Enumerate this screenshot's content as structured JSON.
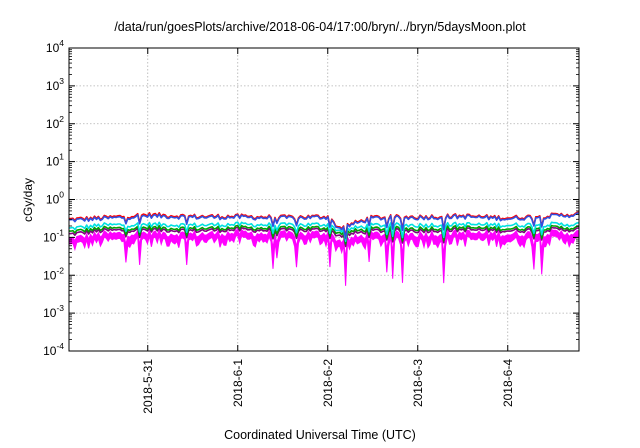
{
  "chart_data": {
    "type": "line",
    "title": "/data/run/goesPlots/archive/2018-06-04/17:00/bryn/../bryn/5daysMoon.plot",
    "xlabel": "Coordinated Universal Time (UTC)",
    "ylabel": "cGy/day",
    "yscale": "log",
    "ylim": [
      0.0001,
      10000
    ],
    "xlim": [
      "2018-05-30 03:00",
      "2018-06-04 19:00"
    ],
    "grid": true,
    "legend": "none",
    "x_ticks": [
      "2018-5-31",
      "2018-6-1",
      "2018-6-2",
      "2018-6-3",
      "2018-6-4"
    ],
    "y_ticks": [
      {
        "base": "10",
        "exp": "-4"
      },
      {
        "base": "10",
        "exp": "-3"
      },
      {
        "base": "10",
        "exp": "-2"
      },
      {
        "base": "10",
        "exp": "-1"
      },
      {
        "base": "10",
        "exp": "0"
      },
      {
        "base": "10",
        "exp": "1"
      },
      {
        "base": "10",
        "exp": "2"
      },
      {
        "base": "10",
        "exp": "3"
      },
      {
        "base": "10",
        "exp": "4"
      }
    ],
    "series": [
      {
        "color": "#ff00ff",
        "style": "band",
        "x": [
          "2018-05-30 03:00",
          "2018-05-30 12:00",
          "2018-05-31 00:00",
          "2018-05-31 12:00",
          "2018-06-01 00:00",
          "2018-06-01 12:00",
          "2018-06-02 00:00",
          "2018-06-02 03:00",
          "2018-06-02 12:00",
          "2018-06-03 00:00",
          "2018-06-03 12:00",
          "2018-06-04 00:00",
          "2018-06-04 12:00",
          "2018-06-04 19:00"
        ],
        "values": [
          0.09,
          0.12,
          0.13,
          0.12,
          0.13,
          0.12,
          0.13,
          0.08,
          0.12,
          0.12,
          0.13,
          0.12,
          0.13,
          0.13
        ]
      },
      {
        "color": "#800080",
        "style": "line",
        "x": [
          "2018-05-30 03:00",
          "2018-05-30 12:00",
          "2018-05-31 00:00",
          "2018-05-31 12:00",
          "2018-06-01 00:00",
          "2018-06-01 12:00",
          "2018-06-02 00:00",
          "2018-06-02 03:00",
          "2018-06-02 12:00",
          "2018-06-03 00:00",
          "2018-06-03 12:00",
          "2018-06-04 00:00",
          "2018-06-04 12:00",
          "2018-06-04 19:00"
        ],
        "values": [
          0.12,
          0.15,
          0.16,
          0.15,
          0.16,
          0.15,
          0.16,
          0.11,
          0.15,
          0.15,
          0.16,
          0.15,
          0.16,
          0.16
        ]
      },
      {
        "color": "#00a000",
        "style": "line",
        "x": [
          "2018-05-30 03:00",
          "2018-05-30 12:00",
          "2018-05-31 00:00",
          "2018-05-31 12:00",
          "2018-06-01 00:00",
          "2018-06-01 12:00",
          "2018-06-02 00:00",
          "2018-06-02 03:00",
          "2018-06-02 12:00",
          "2018-06-03 00:00",
          "2018-06-03 12:00",
          "2018-06-04 00:00",
          "2018-06-04 12:00",
          "2018-06-04 19:00"
        ],
        "values": [
          0.14,
          0.17,
          0.18,
          0.17,
          0.18,
          0.17,
          0.18,
          0.13,
          0.17,
          0.17,
          0.18,
          0.17,
          0.18,
          0.18
        ]
      },
      {
        "color": "#00e0e0",
        "style": "line",
        "x": [
          "2018-05-30 03:00",
          "2018-05-30 12:00",
          "2018-05-31 00:00",
          "2018-05-31 12:00",
          "2018-06-01 00:00",
          "2018-06-01 12:00",
          "2018-06-02 00:00",
          "2018-06-02 03:00",
          "2018-06-02 12:00",
          "2018-06-03 00:00",
          "2018-06-03 12:00",
          "2018-06-04 00:00",
          "2018-06-04 12:00",
          "2018-06-04 19:00"
        ],
        "values": [
          0.17,
          0.21,
          0.22,
          0.21,
          0.22,
          0.21,
          0.22,
          0.15,
          0.21,
          0.21,
          0.22,
          0.21,
          0.22,
          0.22
        ]
      },
      {
        "color": "#ff0000",
        "style": "line",
        "x": [
          "2018-05-30 03:00",
          "2018-05-30 12:00",
          "2018-05-31 00:00",
          "2018-05-31 12:00",
          "2018-06-01 00:00",
          "2018-06-01 12:00",
          "2018-06-02 00:00",
          "2018-06-02 03:00",
          "2018-06-02 12:00",
          "2018-06-03 00:00",
          "2018-06-03 12:00",
          "2018-06-04 00:00",
          "2018-06-04 12:00",
          "2018-06-04 19:00"
        ],
        "values": [
          0.3,
          0.33,
          0.4,
          0.36,
          0.36,
          0.34,
          0.36,
          0.18,
          0.34,
          0.35,
          0.37,
          0.33,
          0.38,
          0.42
        ]
      },
      {
        "color": "#3050e0",
        "style": "line",
        "x": [
          "2018-05-30 03:00",
          "2018-05-30 12:00",
          "2018-05-31 00:00",
          "2018-05-31 12:00",
          "2018-06-01 00:00",
          "2018-06-01 12:00",
          "2018-06-02 00:00",
          "2018-06-02 03:00",
          "2018-06-02 12:00",
          "2018-06-03 00:00",
          "2018-06-03 12:00",
          "2018-06-04 00:00",
          "2018-06-04 12:00",
          "2018-06-04 19:00"
        ],
        "values": [
          0.28,
          0.31,
          0.37,
          0.34,
          0.34,
          0.32,
          0.34,
          0.17,
          0.32,
          0.33,
          0.35,
          0.31,
          0.36,
          0.4
        ]
      }
    ]
  }
}
